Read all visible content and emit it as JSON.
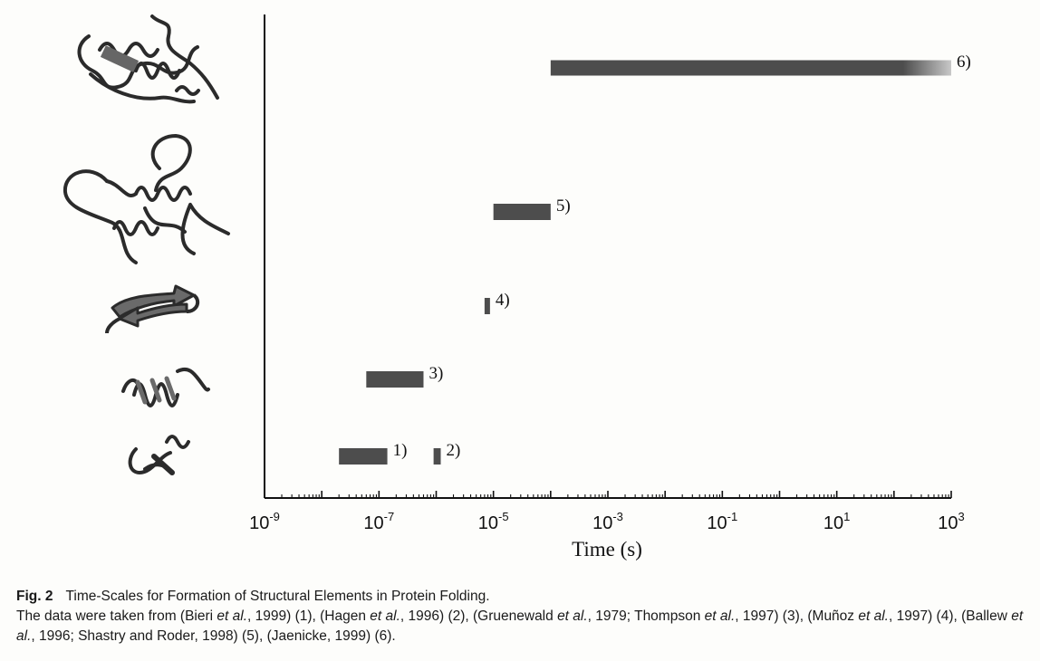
{
  "chart_data": {
    "type": "bar",
    "orientation": "horizontal",
    "xscale": "log",
    "xlabel": "Time (s)",
    "ylabel": "",
    "xlim": [
      1e-09,
      1000
    ],
    "xticks": [
      {
        "value": 1e-09,
        "base": "10",
        "exp": "-9"
      },
      {
        "value": 1e-07,
        "base": "10",
        "exp": "-7"
      },
      {
        "value": 1e-05,
        "base": "10",
        "exp": "-5"
      },
      {
        "value": 0.001,
        "base": "10",
        "exp": "-3"
      },
      {
        "value": 0.1,
        "base": "10",
        "exp": "-1"
      },
      {
        "value": 10,
        "base": "10",
        "exp": "1"
      },
      {
        "value": 1000,
        "base": "10",
        "exp": "3"
      }
    ],
    "grid": false,
    "bar_color": "#4d4d4d",
    "bars": [
      {
        "label": "1)",
        "row": 1,
        "start": 2e-08,
        "end": 1.4e-07
      },
      {
        "label": "2)",
        "row": 1,
        "start": 9e-07,
        "end": 1.2e-06
      },
      {
        "label": "3)",
        "row": 2,
        "start": 6e-08,
        "end": 6e-07
      },
      {
        "label": "4)",
        "row": 3,
        "start": 7e-06,
        "end": 8.5e-06
      },
      {
        "label": "5)",
        "row": 4,
        "start": 1e-05,
        "end": 0.0001
      },
      {
        "label": "6)",
        "row": 5,
        "start": 0.0001,
        "end": 1000
      }
    ],
    "structure_icons": [
      "protein-tertiary-structure-icon",
      "protein-large-structure-icon",
      "beta-hairpin-icon",
      "alpha-helix-icon",
      "turn-loop-icon"
    ]
  },
  "caption": {
    "label": "Fig. 2",
    "title": "Time-Scales for Formation of Structural Elements in Protein Folding.",
    "text_before_1": "The data were taken from (Bieri ",
    "et_al": "et al.",
    "text_after_1": ", 1999) (1), (Hagen ",
    "text_after_2": ", 1996) (2), (Gruenewald ",
    "text_after_3": ", 1979; Thompson ",
    "text_after_4": ", 1997) (3), (Muñoz ",
    "text_after_5": ", 1997) (4), (Ballew ",
    "text_after_6": ", 1996; Shastry and Roder, 1998) (5), (Jaenicke, 1999) (6)."
  }
}
